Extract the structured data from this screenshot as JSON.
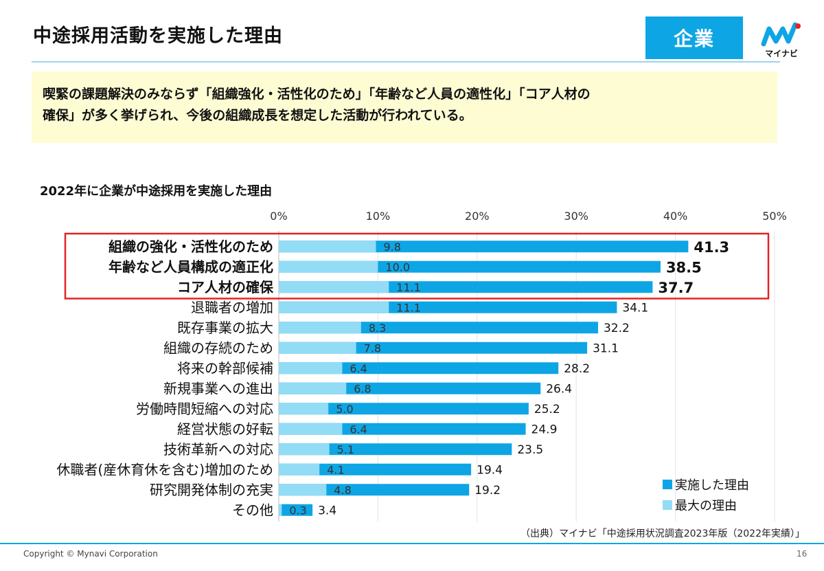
{
  "page": {
    "title": "中途採用活動を実施した理由",
    "tag": "企業",
    "logo_text": "マイナビ",
    "summary_line1": "喫緊の課題解決のみならず「組織強化・活性化のため」「年齢など人員の適性化」「コア人材の",
    "summary_line2": "確保」が多く挙げられ、今後の組織成長を想定した活動が行われている。",
    "chart_title": "2022年に企業が中途採用を実施した理由",
    "source": "（出典）マイナビ「中途採用状況調査2023年版（2022年実績）」",
    "copyright": "Copyright © Mynavi Corporation",
    "page_number": "16"
  },
  "colors": {
    "accent": "#0ea5e4",
    "bar_dark": "#0ea5e4",
    "bar_light": "#92dcf6",
    "highlight_border": "#e32222",
    "summary_bg": "#fefcd3"
  },
  "chart_data": {
    "type": "bar",
    "orientation": "horizontal",
    "categories": [
      "組織の強化・活性化のため",
      "年齢など人員構成の適正化",
      "コア人材の確保",
      "退職者の増加",
      "既存事業の拡大",
      "組織の存続のため",
      "将来の幹部候補",
      "新規事業への進出",
      "労働時間短縮への対応",
      "経営状態の好転",
      "技術革新への対応",
      "休職者(産休育休を含む)増加のため",
      "研究開発体制の充実",
      "その他"
    ],
    "series": [
      {
        "name": "実施した理由",
        "values": [
          41.3,
          38.5,
          37.7,
          34.1,
          32.2,
          31.1,
          28.2,
          26.4,
          25.2,
          24.9,
          23.5,
          19.4,
          19.2,
          3.4
        ]
      },
      {
        "name": "最大の理由",
        "values": [
          9.8,
          10.0,
          11.1,
          11.1,
          8.3,
          7.8,
          6.4,
          6.8,
          5.0,
          6.4,
          5.1,
          4.1,
          4.8,
          0.3
        ]
      }
    ],
    "value_labels": [
      [
        "41.3",
        "38.5",
        "37.7",
        "34.1",
        "32.2",
        "31.1",
        "28.2",
        "26.4",
        "25.2",
        "24.9",
        "23.5",
        "19.4",
        "19.2",
        "3.4"
      ],
      [
        "9.8",
        "10.0",
        "11.1",
        "11.1",
        "8.3",
        "7.8",
        "6.4",
        "6.8",
        "5.0",
        "6.4",
        "5.1",
        "4.1",
        "4.8",
        "0.3"
      ]
    ],
    "xticks": [
      "0%",
      "10%",
      "20%",
      "30%",
      "40%",
      "50%"
    ],
    "xlim": [
      0,
      50
    ],
    "grid": true,
    "legend_position": "bottom-right",
    "highlighted_categories": 3
  }
}
